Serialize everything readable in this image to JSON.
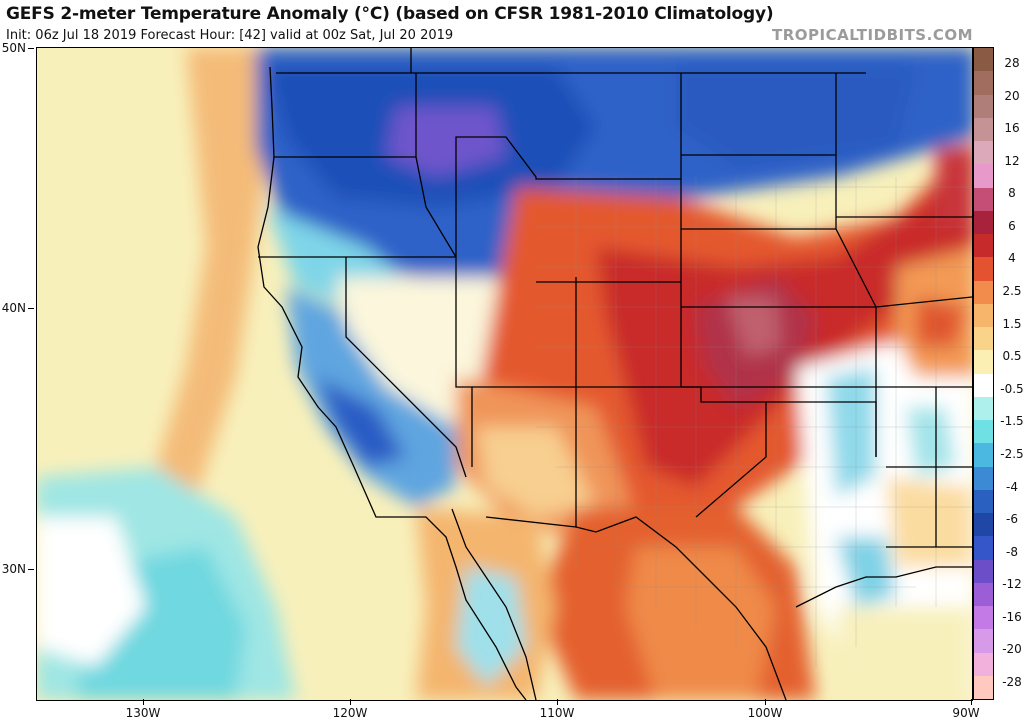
{
  "header": {
    "title": "GEFS 2-meter Temperature Anomaly (°C) (based on CFSR 1981-2010 Climatology)",
    "subtitle": "Init: 06z Jul 18 2019   Forecast Hour: [42]   valid at 00z Sat, Jul 20 2019",
    "brand": "TROPICALTIDBITS.COM"
  },
  "axes": {
    "lat_labels": [
      "50N",
      "40N",
      "30N"
    ],
    "lon_labels": [
      "130W",
      "120W",
      "110W",
      "100W",
      "90W"
    ]
  },
  "colorbar": {
    "labels": [
      "28",
      "20",
      "16",
      "12",
      "8",
      "6",
      "4",
      "2.5",
      "1.5",
      "0.5",
      "-0.5",
      "-1.5",
      "-2.5",
      "-4",
      "-6",
      "-8",
      "-12",
      "-16",
      "-20",
      "-28"
    ],
    "colors": [
      "#8a5a44",
      "#a06d5f",
      "#b07e78",
      "#c59295",
      "#dca9bb",
      "#e799cc",
      "#c44e75",
      "#a8223c",
      "#c72a2a",
      "#e4532f",
      "#f28c4c",
      "#f6b56b",
      "#fad38b",
      "#fcefb3",
      "#ffffff",
      "#aef0ec",
      "#6fe0e4",
      "#4ab8e0",
      "#3d8ad4",
      "#2a60bf",
      "#1f47a6",
      "#3456c8",
      "#6c4ec8",
      "#9b5ed6",
      "#c47ae6",
      "#d69ae8",
      "#f2b1dc",
      "#ffc9c0"
    ]
  },
  "map": {
    "description_colors": {
      "ocean": "#f6efb8",
      "cold": "#2f5cc4",
      "warm": "#e05a30"
    }
  }
}
